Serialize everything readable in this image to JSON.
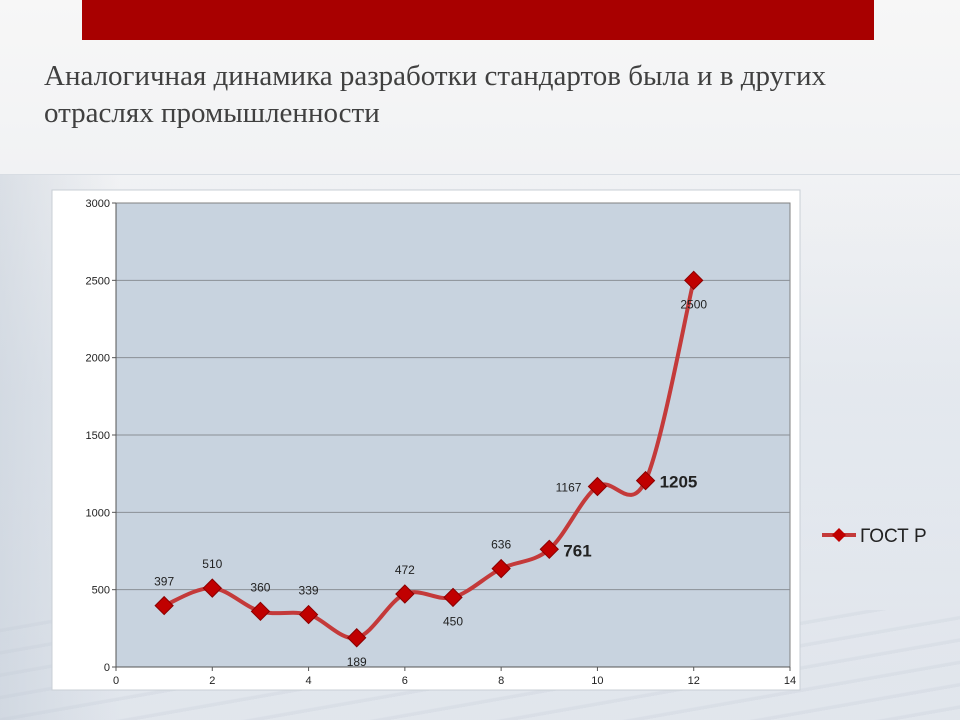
{
  "slide": {
    "title": "Аналогичная динамика разработки стандартов была и в других отраслях промышленности"
  },
  "colors": {
    "top_bar": "#a80000",
    "plot_background": "#c8d3df",
    "series_line": "#c43a3a",
    "series_marker": "#c00000"
  },
  "chart_data": {
    "type": "line",
    "title": "",
    "xlabel": "",
    "ylabel": "",
    "xlim": [
      0,
      14
    ],
    "ylim": [
      0,
      3000
    ],
    "x_ticks": [
      0,
      2,
      4,
      6,
      8,
      10,
      12,
      14
    ],
    "y_ticks": [
      0,
      500,
      1000,
      1500,
      2000,
      2500,
      3000
    ],
    "grid": "horizontal",
    "legend": "right",
    "series": [
      {
        "name": "ГОСТ Р",
        "x": [
          1,
          2,
          3,
          4,
          5,
          6,
          7,
          8,
          9,
          10,
          11,
          12
        ],
        "values": [
          397,
          510,
          360,
          339,
          189,
          472,
          450,
          636,
          761,
          1167,
          1205,
          2500
        ],
        "labels": [
          {
            "text": "397",
            "pos": "above",
            "bold": false
          },
          {
            "text": "510",
            "pos": "above",
            "bold": false
          },
          {
            "text": "360",
            "pos": "above",
            "bold": false
          },
          {
            "text": "339",
            "pos": "above",
            "bold": false
          },
          {
            "text": "189",
            "pos": "below",
            "bold": false
          },
          {
            "text": "472",
            "pos": "above",
            "bold": false
          },
          {
            "text": "450",
            "pos": "below",
            "bold": false
          },
          {
            "text": "636",
            "pos": "above",
            "bold": false
          },
          {
            "text": "761",
            "pos": "right",
            "bold": true
          },
          {
            "text": "1167",
            "pos": "left",
            "bold": false
          },
          {
            "text": "1205",
            "pos": "right",
            "bold": true
          },
          {
            "text": "2500",
            "pos": "below",
            "bold": false
          }
        ]
      }
    ]
  }
}
